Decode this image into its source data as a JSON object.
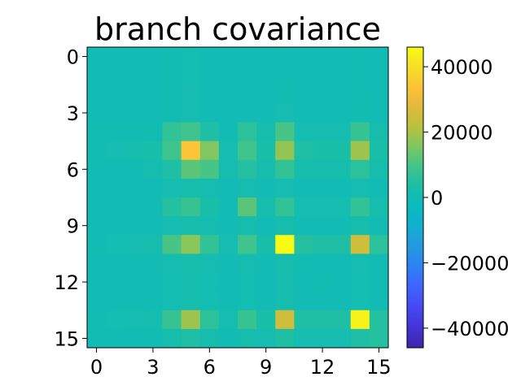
{
  "chart_data": {
    "type": "heatmap",
    "title": "branch covariance",
    "xlabel": "",
    "ylabel": "",
    "rows": 16,
    "cols": 16,
    "x_ticks": [
      {
        "value": 0,
        "label": "0"
      },
      {
        "value": 3,
        "label": "3"
      },
      {
        "value": 6,
        "label": "6"
      },
      {
        "value": 9,
        "label": "9"
      },
      {
        "value": 12,
        "label": "12"
      },
      {
        "value": 15,
        "label": "15"
      }
    ],
    "y_ticks": [
      {
        "value": 0,
        "label": "0"
      },
      {
        "value": 3,
        "label": "3"
      },
      {
        "value": 6,
        "label": "6"
      },
      {
        "value": 9,
        "label": "9"
      },
      {
        "value": 12,
        "label": "12"
      },
      {
        "value": 15,
        "label": "15"
      }
    ],
    "colorbar": {
      "min": -46000,
      "max": 46000,
      "ticks": [
        {
          "value": 40000,
          "label": "40000"
        },
        {
          "value": 20000,
          "label": "20000"
        },
        {
          "value": 0,
          "label": "0"
        },
        {
          "value": -20000,
          "label": "−20000"
        },
        {
          "value": -40000,
          "label": "−40000"
        }
      ],
      "colors": [
        "#3e26a8",
        "#4433d6",
        "#4648f2",
        "#3f63fd",
        "#2f7ff5",
        "#2498e0",
        "#12aed0",
        "#0cbac0",
        "#18bea8",
        "#3fc48b",
        "#7ac764",
        "#b6c23e",
        "#e2b93a",
        "#fcc338",
        "#f5de28",
        "#f9fb14"
      ]
    },
    "values": [
      [
        0,
        0,
        0,
        0,
        200,
        800,
        0,
        0,
        0,
        0,
        600,
        0,
        0,
        0,
        400,
        0
      ],
      [
        0,
        0,
        0,
        0,
        200,
        800,
        0,
        0,
        0,
        0,
        600,
        0,
        0,
        0,
        400,
        0
      ],
      [
        0,
        0,
        0,
        0,
        300,
        900,
        0,
        0,
        0,
        0,
        700,
        0,
        0,
        0,
        500,
        0
      ],
      [
        0,
        0,
        0,
        0,
        400,
        1200,
        0,
        0,
        0,
        0,
        900,
        0,
        0,
        0,
        700,
        0
      ],
      [
        300,
        200,
        300,
        300,
        7000,
        9000,
        4000,
        0,
        6000,
        2000,
        10000,
        1000,
        1000,
        1000,
        8000,
        2000
      ],
      [
        600,
        1000,
        1500,
        2500,
        9000,
        34000,
        16000,
        1000,
        9000,
        3000,
        18000,
        4000,
        3000,
        3000,
        19000,
        3000
      ],
      [
        400,
        400,
        600,
        1500,
        4000,
        12000,
        10000,
        1000,
        5000,
        2000,
        7000,
        2000,
        2000,
        2000,
        6000,
        2000
      ],
      [
        0,
        0,
        0,
        0,
        1000,
        2000,
        1000,
        0,
        1000,
        0,
        1000,
        0,
        0,
        0,
        1000,
        0
      ],
      [
        200,
        200,
        400,
        500,
        5000,
        8000,
        3000,
        0,
        12000,
        2000,
        7000,
        1000,
        1000,
        1000,
        7000,
        2000
      ],
      [
        0,
        0,
        0,
        0,
        1000,
        2000,
        1000,
        0,
        2000,
        0,
        2000,
        0,
        0,
        0,
        2000,
        0
      ],
      [
        600,
        800,
        1200,
        1500,
        10000,
        17000,
        7000,
        1000,
        9000,
        3000,
        46000,
        5000,
        4000,
        4000,
        25000,
        6000
      ],
      [
        0,
        0,
        200,
        300,
        1000,
        2000,
        1000,
        0,
        1000,
        0,
        2000,
        600,
        0,
        0,
        1000,
        0
      ],
      [
        0,
        0,
        0,
        0,
        800,
        1500,
        800,
        0,
        800,
        0,
        1500,
        0,
        400,
        0,
        800,
        0
      ],
      [
        0,
        0,
        0,
        0,
        800,
        1500,
        800,
        0,
        800,
        0,
        1500,
        0,
        0,
        0,
        800,
        0
      ],
      [
        600,
        800,
        1200,
        1500,
        8000,
        19000,
        6000,
        1000,
        8000,
        3000,
        25000,
        4000,
        4000,
        4000,
        44000,
        5000
      ],
      [
        200,
        200,
        300,
        400,
        2000,
        4000,
        2000,
        0,
        2000,
        1000,
        4000,
        1000,
        1000,
        1000,
        4000,
        5000
      ]
    ]
  }
}
